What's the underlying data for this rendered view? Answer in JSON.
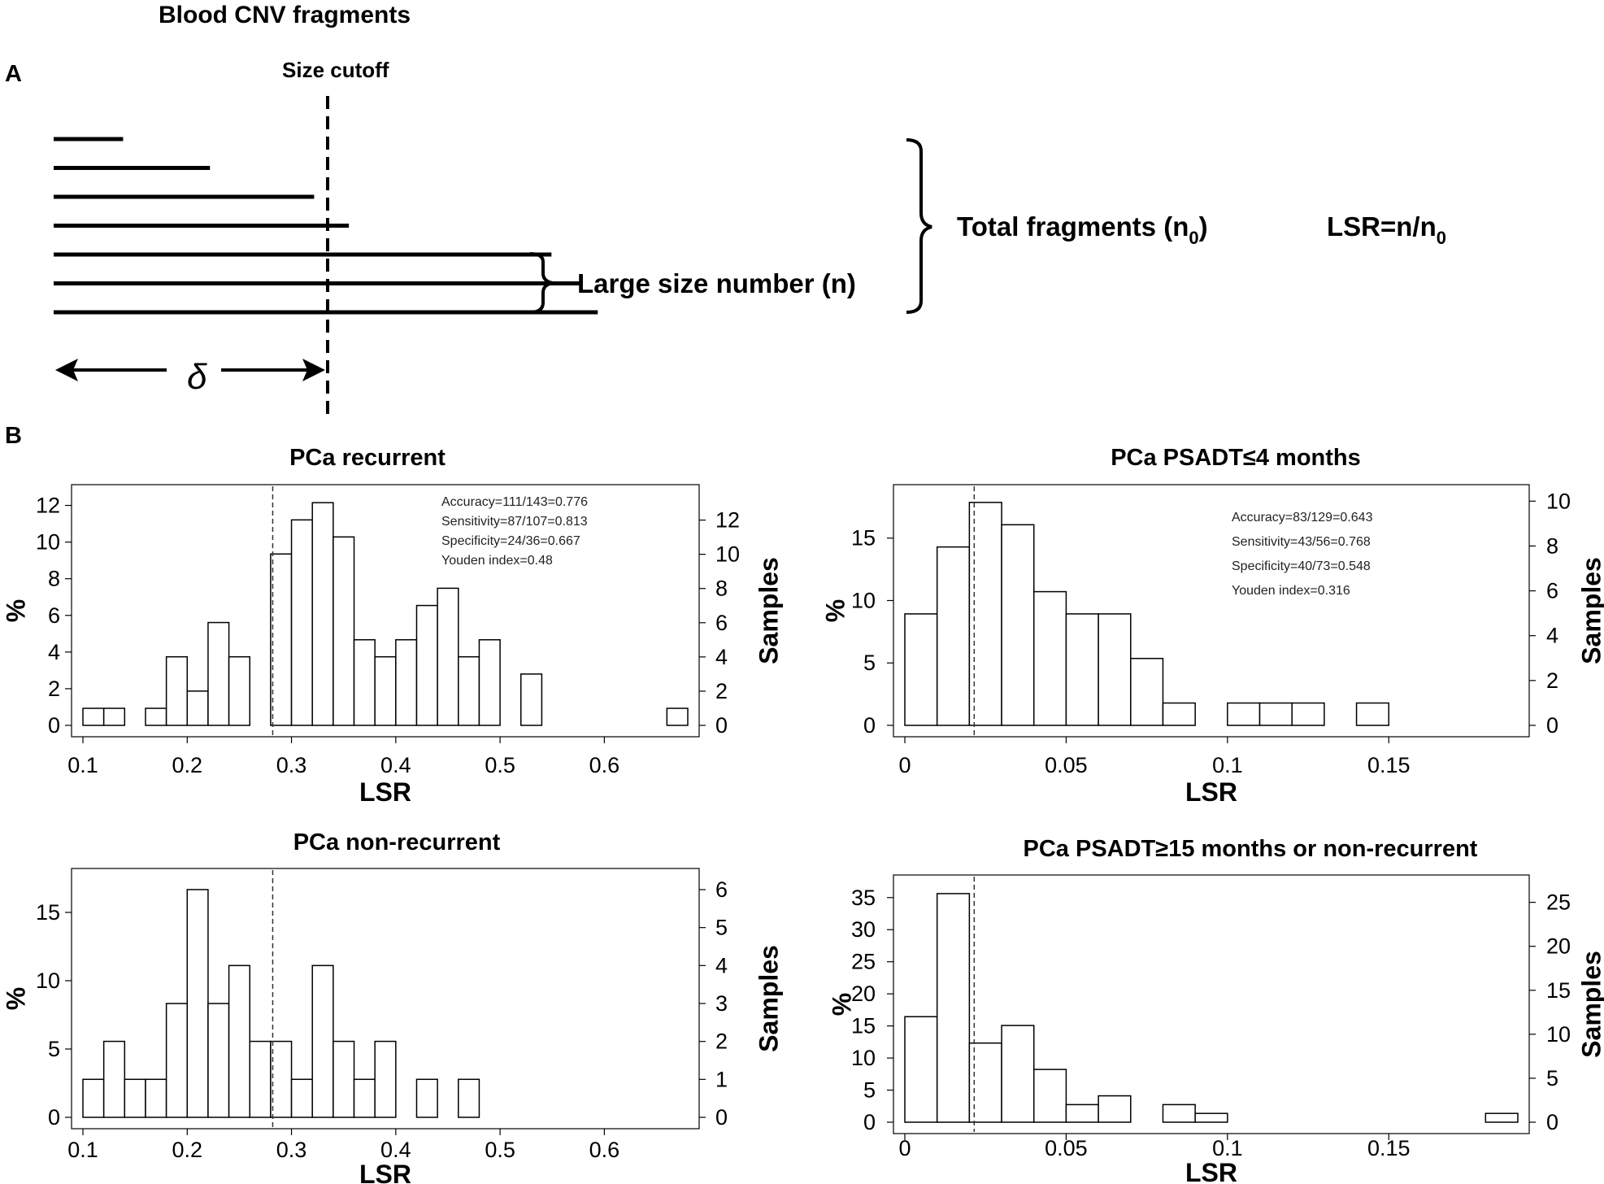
{
  "figure": {
    "title": "Blood CNV fragments",
    "panel_a_label": "A",
    "panel_b_label": "B"
  },
  "schematic": {
    "size_cutoff_label": "Size cutoff",
    "large_size_label": "Large size number (n)",
    "total_label": "Total fragments (n",
    "total_sub": "0",
    "total_close": ")",
    "lsr_label": "LSR=n/n",
    "lsr_sub": "0",
    "delta_symbol": "δ",
    "fragment_lengths": [
      0.12,
      0.27,
      0.45,
      0.51,
      0.86,
      0.91,
      0.94
    ],
    "cutoff": 0.52
  },
  "chart_data": [
    {
      "type": "bar",
      "panel": "PCa recurrent",
      "title": "PCa recurrent",
      "xlabel": "LSR",
      "ylabel": "%",
      "ylabel_right": "Samples",
      "xlim": [
        0.1,
        0.68
      ],
      "bin_width": 0.02,
      "bin_starts": [
        0.1,
        0.12,
        0.16,
        0.18,
        0.2,
        0.22,
        0.24,
        0.28,
        0.3,
        0.32,
        0.34,
        0.36,
        0.38,
        0.4,
        0.42,
        0.44,
        0.46,
        0.48,
        0.52,
        0.66
      ],
      "values": [
        0.93,
        0.93,
        0.93,
        3.74,
        1.87,
        5.61,
        3.74,
        9.35,
        11.21,
        12.15,
        10.28,
        4.67,
        3.74,
        4.67,
        6.54,
        7.48,
        3.74,
        4.67,
        2.8,
        0.93
      ],
      "ylim": [
        0,
        12.6
      ],
      "y_ticks": [
        0,
        2,
        4,
        6,
        8,
        10,
        12
      ],
      "right_ylim": [
        0,
        13.5
      ],
      "right_ticks": [
        0,
        2,
        4,
        6,
        8,
        10,
        12
      ],
      "x_ticks": [
        0.1,
        0.2,
        0.3,
        0.4,
        0.5,
        0.6
      ],
      "x_tick_labels": [
        "0.1",
        "0.2",
        "0.3",
        "0.4",
        "0.5",
        "0.6"
      ],
      "cutoff": 0.282,
      "annotations": [
        "Accuracy=111/143=0.776",
        "Sensitivity=87/107=0.813",
        "Specificity=24/36=0.667",
        "Youden index=0.48"
      ]
    },
    {
      "type": "bar",
      "panel": "PCa PSADT≤4 months",
      "title": "PCa PSADT≤4 months",
      "xlabel": "LSR",
      "ylabel": "%",
      "ylabel_right": "Samples",
      "xlim": [
        0,
        0.19
      ],
      "bin_width": 0.01,
      "bin_starts": [
        0.0,
        0.01,
        0.02,
        0.03,
        0.04,
        0.05,
        0.06,
        0.07,
        0.08,
        0.1,
        0.11,
        0.12,
        0.14
      ],
      "values": [
        8.93,
        14.29,
        17.86,
        16.07,
        10.71,
        8.93,
        8.93,
        5.36,
        1.79,
        1.79,
        1.79,
        1.79,
        1.79
      ],
      "ylim": [
        0,
        18.5
      ],
      "y_ticks": [
        0,
        5,
        10,
        15
      ],
      "right_ylim": [
        0,
        10.3
      ],
      "right_ticks": [
        0,
        2,
        4,
        6,
        8,
        10
      ],
      "x_ticks": [
        0,
        0.05,
        0.1,
        0.15
      ],
      "x_tick_labels": [
        "0",
        "0.05",
        "0.1",
        "0.15"
      ],
      "cutoff": 0.0215,
      "annotations": [
        "Accuracy=83/129=0.643",
        "Sensitivity=43/56=0.768",
        "Specificity=40/73=0.548",
        "Youden index=0.316"
      ]
    },
    {
      "type": "bar",
      "panel": "PCa non-recurrent",
      "title": "PCa non-recurrent",
      "xlabel": "LSR",
      "ylabel": "%",
      "ylabel_right": "Samples",
      "xlim": [
        0.1,
        0.68
      ],
      "bin_width": 0.02,
      "bin_starts": [
        0.1,
        0.12,
        0.14,
        0.16,
        0.18,
        0.2,
        0.22,
        0.24,
        0.26,
        0.28,
        0.3,
        0.32,
        0.34,
        0.36,
        0.38,
        0.42,
        0.44,
        0.46
      ],
      "values": [
        2.78,
        5.56,
        2.78,
        2.78,
        8.33,
        16.67,
        8.33,
        11.11,
        5.56,
        5.56,
        2.78,
        11.11,
        5.56,
        2.78,
        5.56,
        2.78,
        0,
        2.78
      ],
      "ylim": [
        0,
        17.5
      ],
      "y_ticks": [
        0,
        5,
        10,
        15
      ],
      "right_ylim": [
        0,
        6.3
      ],
      "right_ticks": [
        0,
        1,
        2,
        3,
        4,
        5,
        6
      ],
      "x_ticks": [
        0.1,
        0.2,
        0.3,
        0.4,
        0.5,
        0.6
      ],
      "x_tick_labels": [
        "0.1",
        "0.2",
        "0.3",
        "0.4",
        "0.5",
        "0.6"
      ],
      "cutoff": 0.282,
      "annotations": []
    },
    {
      "type": "bar",
      "panel": "PCa PSADT≥15 months or non-recurrent",
      "title": "PCa PSADT≥15 months or non-recurrent",
      "xlabel": "LSR",
      "ylabel": "%",
      "ylabel_right": "Samples",
      "xlim": [
        0,
        0.19
      ],
      "bin_width": 0.01,
      "bin_starts": [
        0.0,
        0.01,
        0.02,
        0.03,
        0.04,
        0.05,
        0.06,
        0.08,
        0.09,
        0.18
      ],
      "values": [
        16.44,
        35.62,
        12.33,
        15.07,
        8.22,
        2.74,
        4.11,
        2.74,
        1.37,
        1.37
      ],
      "ylim": [
        0,
        37
      ],
      "y_ticks": [
        0,
        5,
        10,
        15,
        20,
        25,
        30,
        35
      ],
      "right_ylim": [
        0,
        27
      ],
      "right_ticks": [
        0,
        5,
        10,
        15,
        20,
        25
      ],
      "x_ticks": [
        0,
        0.05,
        0.1,
        0.15
      ],
      "x_tick_labels": [
        "0",
        "0.05",
        "0.1",
        "0.15"
      ],
      "cutoff": 0.0215,
      "annotations": []
    }
  ]
}
